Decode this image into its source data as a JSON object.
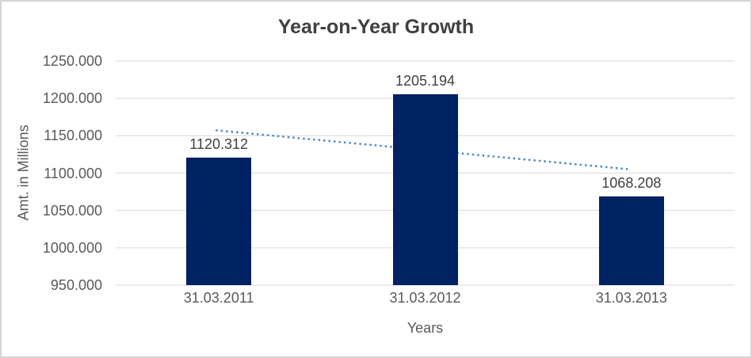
{
  "chart_data": {
    "type": "bar",
    "title": "Year-on-Year Growth",
    "xlabel": "Years",
    "ylabel": "Amt. in Millions",
    "categories": [
      "31.03.2011",
      "31.03.2012",
      "31.03.2013"
    ],
    "values": [
      1120.312,
      1205.194,
      1068.208
    ],
    "data_labels": [
      "1120.312",
      "1205.194",
      "1068.208"
    ],
    "ylim": [
      950,
      1250
    ],
    "ytick_step": 50,
    "ytick_labels": [
      "1250.000",
      "1200.000",
      "1150.000",
      "1100.000",
      "1050.000",
      "1000.000",
      "950.000"
    ],
    "grid": true,
    "legend": "none",
    "trendline": {
      "kind": "linear",
      "style": "dotted"
    },
    "colors": {
      "bar": "#002262",
      "trendline": "#4e87c9",
      "gridline": "#d9d9d9",
      "axis_text": "#595959",
      "title_text": "#404040",
      "data_label_text": "#404040",
      "border": "#d4d4d4",
      "background": "#ffffff"
    }
  }
}
